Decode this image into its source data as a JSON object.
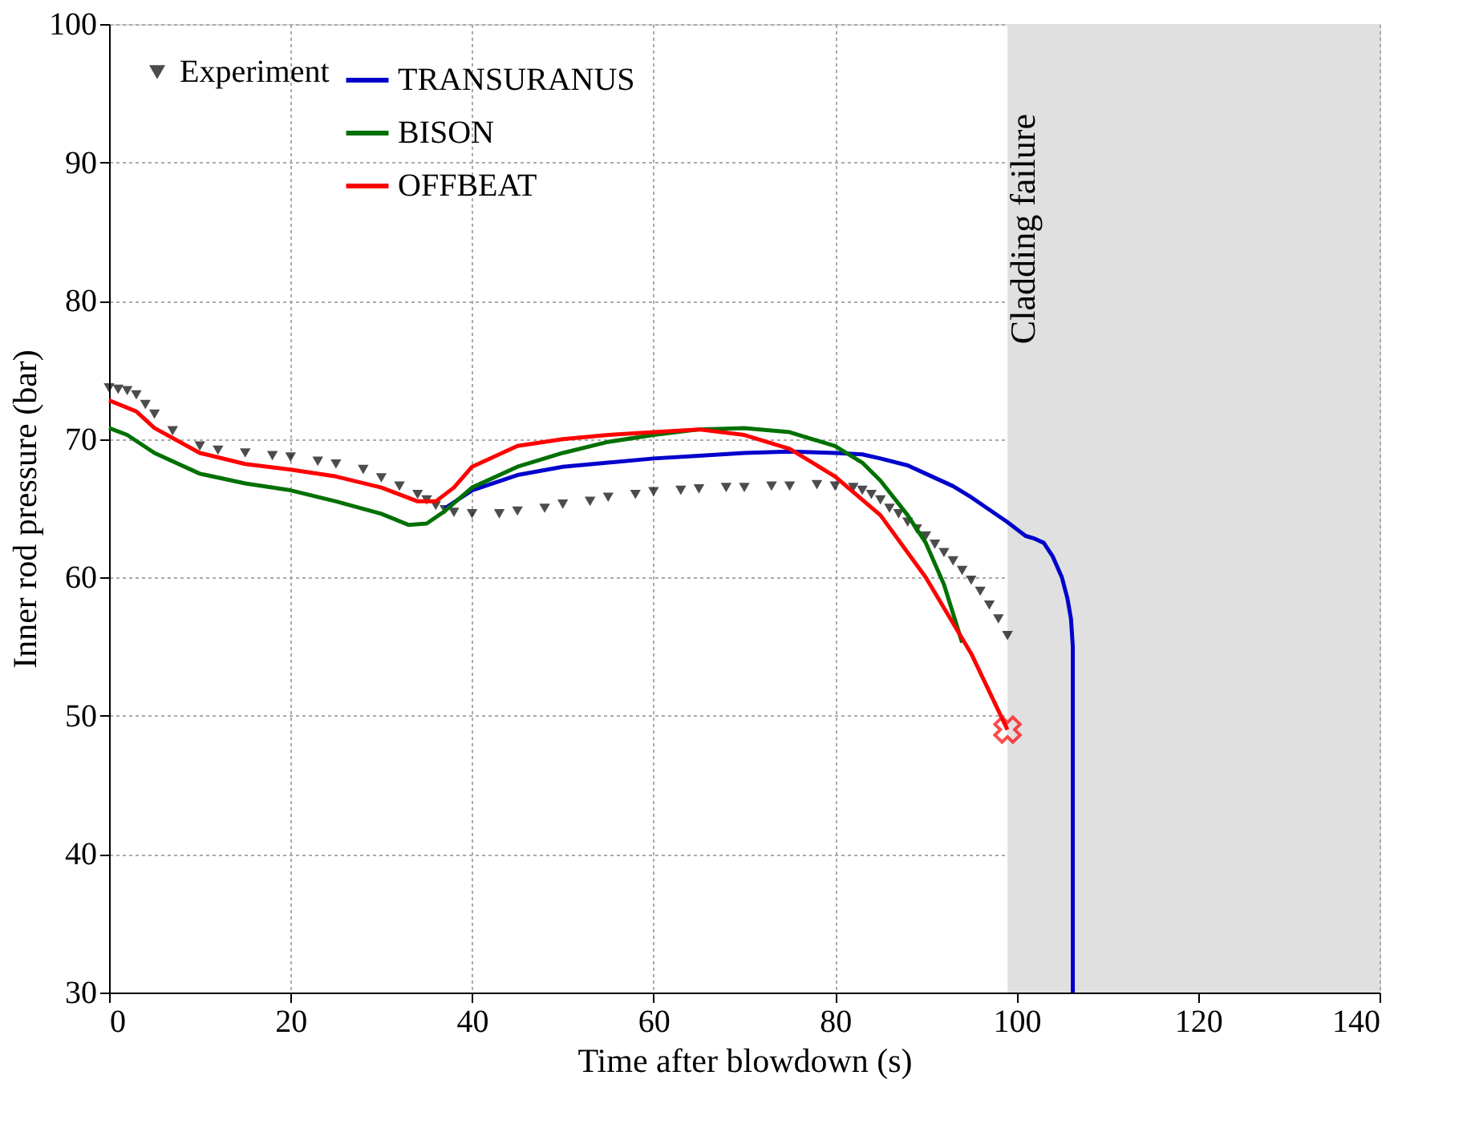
{
  "chart_data": {
    "type": "line",
    "xlabel": "Time after blowdown (s)",
    "ylabel": "Inner rod pressure (bar)",
    "xlim": [
      0,
      140
    ],
    "xticks": [
      0,
      20,
      40,
      60,
      80,
      100,
      120,
      140
    ],
    "ylim": [
      30,
      100
    ],
    "yticks": [
      30,
      40,
      50,
      60,
      70,
      80,
      90,
      100
    ],
    "grid": true,
    "legend": "top left",
    "line_style": "solid",
    "bands": [
      {
        "axis": "x",
        "from": 99,
        "to": 140,
        "label": "Cladding failure",
        "color": "#e0e0e0"
      }
    ],
    "series": [
      {
        "name": "Experiment",
        "type": "scatter",
        "marker": "triangle",
        "color": "#000000",
        "x": [
          0,
          1,
          2,
          3,
          4,
          5,
          7,
          10,
          12,
          15,
          18,
          20,
          23,
          25,
          28,
          30,
          32,
          34,
          35,
          36,
          37,
          38,
          40,
          43,
          45,
          48,
          50,
          53,
          55,
          58,
          60,
          63,
          65,
          68,
          70,
          73,
          75,
          78,
          80,
          82,
          83,
          84,
          85,
          86,
          87,
          88,
          89,
          90,
          91,
          92,
          93,
          94,
          95,
          96,
          97,
          98,
          99
        ],
        "values": [
          73.7,
          73.6,
          73.5,
          73.2,
          72.5,
          71.8,
          70.6,
          69.5,
          69.2,
          69.0,
          68.8,
          68.7,
          68.4,
          68.2,
          67.8,
          67.2,
          66.6,
          66.0,
          65.6,
          65.2,
          64.9,
          64.7,
          64.6,
          64.6,
          64.8,
          65.0,
          65.3,
          65.5,
          65.8,
          66.0,
          66.2,
          66.3,
          66.4,
          66.5,
          66.5,
          66.6,
          66.6,
          66.7,
          66.6,
          66.5,
          66.3,
          66.0,
          65.6,
          65.0,
          64.6,
          64.0,
          63.5,
          63.0,
          62.4,
          61.8,
          61.2,
          60.5,
          59.8,
          59.0,
          58.0,
          57.0,
          55.8
        ]
      },
      {
        "name": "TRANSURANUS",
        "color": "#0000cc",
        "x": [
          37,
          40,
          45,
          50,
          55,
          60,
          65,
          70,
          75,
          80,
          83,
          85,
          88,
          90,
          93,
          95,
          97,
          99,
          101,
          102,
          103,
          104,
          105,
          105.6,
          106,
          106.2,
          106.2
        ],
        "values": [
          65.0,
          66.3,
          67.4,
          68.0,
          68.3,
          68.6,
          68.8,
          69.0,
          69.1,
          69.0,
          68.9,
          68.6,
          68.1,
          67.5,
          66.6,
          65.8,
          64.9,
          64.0,
          63.0,
          62.8,
          62.5,
          61.5,
          60.0,
          58.5,
          57.0,
          55.0,
          30.0
        ]
      },
      {
        "name": "BISON",
        "color": "#007000",
        "x": [
          0,
          2,
          5,
          10,
          15,
          20,
          25,
          30,
          33,
          35,
          37,
          40,
          45,
          50,
          55,
          60,
          65,
          70,
          75,
          80,
          83,
          85,
          88,
          90,
          92,
          94
        ],
        "values": [
          70.8,
          70.3,
          69.0,
          67.5,
          66.8,
          66.3,
          65.5,
          64.6,
          63.8,
          63.9,
          64.8,
          66.5,
          68.0,
          69.0,
          69.8,
          70.3,
          70.7,
          70.8,
          70.5,
          69.5,
          68.3,
          67.0,
          64.5,
          62.5,
          59.5,
          55.3
        ]
      },
      {
        "name": "OFFBEAT",
        "color": "#ff0000",
        "x": [
          0,
          3,
          5,
          10,
          15,
          20,
          25,
          30,
          34,
          36,
          38,
          40,
          45,
          50,
          55,
          60,
          65,
          70,
          75,
          80,
          85,
          90,
          95,
          99
        ],
        "values": [
          72.8,
          72.0,
          70.8,
          69.0,
          68.2,
          67.8,
          67.3,
          66.5,
          65.5,
          65.5,
          66.5,
          68.0,
          69.5,
          70.0,
          70.3,
          70.5,
          70.7,
          70.3,
          69.3,
          67.3,
          64.5,
          60.0,
          54.5,
          49.0
        ]
      },
      {
        "type": "scatter",
        "marker": "cross",
        "color": "#ff0000",
        "x": [
          99
        ],
        "values": [
          49.0
        ]
      }
    ]
  }
}
